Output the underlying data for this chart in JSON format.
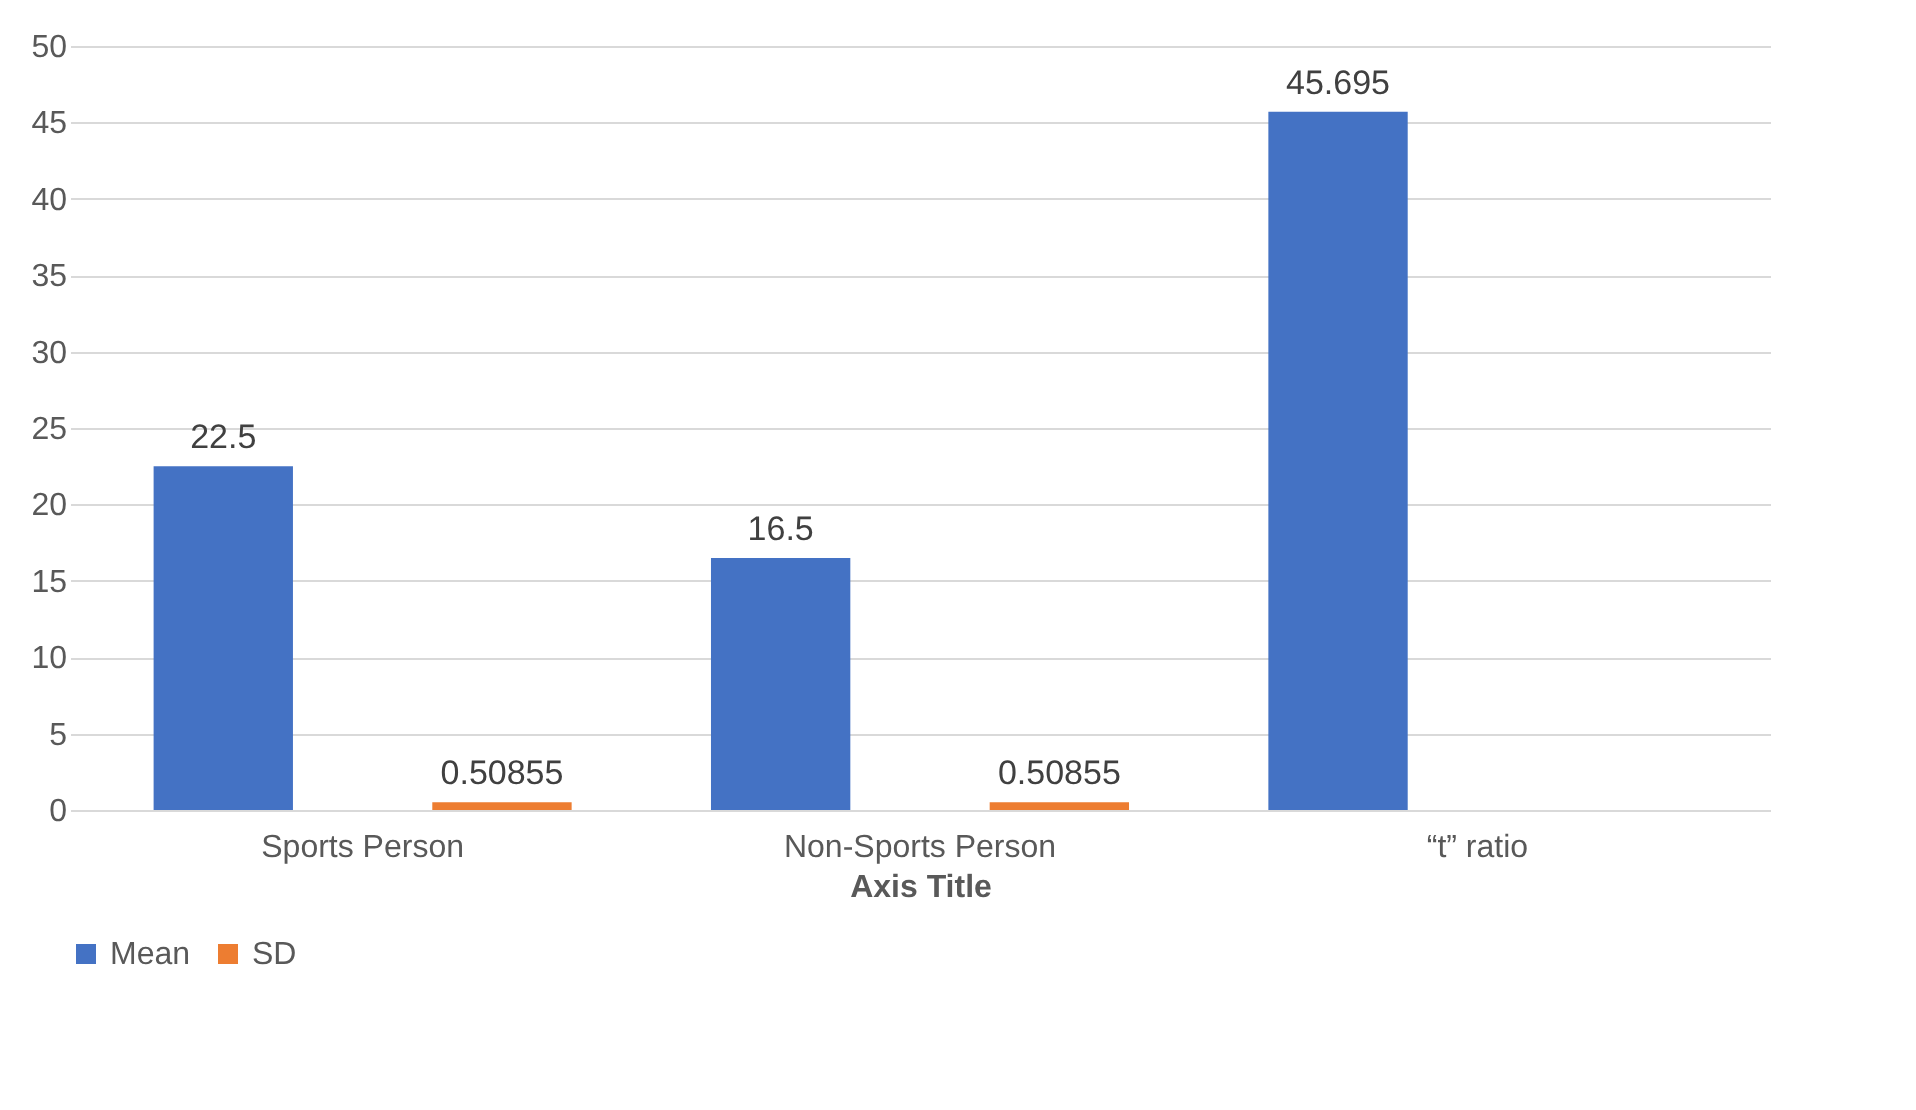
{
  "chart_data": {
    "type": "bar",
    "xlabel": "Axis Title",
    "categories": [
      "Sports Person",
      "Non-Sports Person",
      "“t” ratio"
    ],
    "series": [
      {
        "name": "Mean",
        "color": "#4472c4",
        "values": [
          22.5,
          16.5,
          45.695
        ]
      },
      {
        "name": "SD",
        "color": "#ed7d31",
        "values": [
          0.50855,
          0.50855,
          null
        ]
      }
    ],
    "ylim": [
      0,
      50
    ],
    "yticks": [
      0,
      5,
      10,
      15,
      20,
      25,
      30,
      35,
      40,
      45,
      50
    ],
    "grid": "y",
    "legend": "bottom",
    "data_labels": true
  }
}
